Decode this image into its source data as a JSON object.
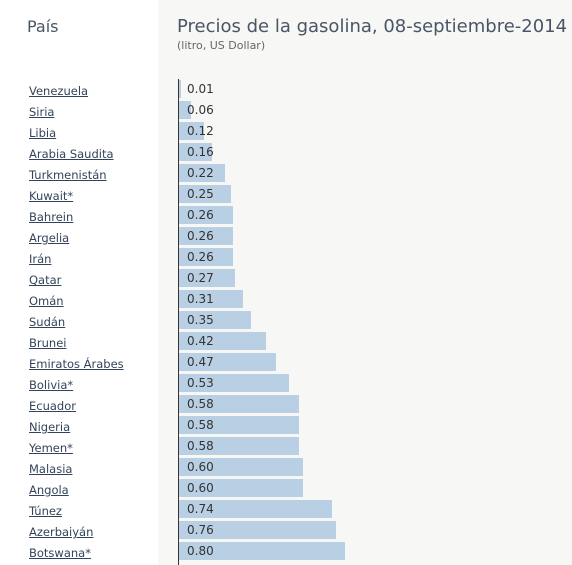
{
  "header": {
    "country_column": "País",
    "title": "Precios de la gasolina, 08-septiembre-2014",
    "subtitle": "(litro, US Dollar)"
  },
  "chart_data": {
    "type": "bar",
    "orientation": "horizontal",
    "title": "Precios de la gasolina, 08-septiembre-2014",
    "subtitle": "(litro, US Dollar)",
    "categories": [
      "Venezuela",
      "Siria",
      "Libia",
      "Arabia Saudita",
      "Turkmenistán",
      "Kuwait*",
      "Bahrein",
      "Argelia",
      "Irán",
      "Qatar",
      "Omán",
      "Sudán",
      "Brunei",
      "Emiratos Árabes",
      "Bolivia*",
      "Ecuador",
      "Nigeria",
      "Yemen*",
      "Malasia",
      "Angola",
      "Túnez",
      "Azerbaiyán",
      "Botswana*"
    ],
    "values": [
      0.01,
      0.06,
      0.12,
      0.16,
      0.22,
      0.25,
      0.26,
      0.26,
      0.26,
      0.27,
      0.31,
      0.35,
      0.42,
      0.47,
      0.53,
      0.58,
      0.58,
      0.58,
      0.6,
      0.6,
      0.74,
      0.76,
      0.8
    ],
    "labels": [
      "0.01",
      "0.06",
      "0.12",
      "0.16",
      "0.22",
      "0.25",
      "0.26",
      "0.26",
      "0.26",
      "0.27",
      "0.31",
      "0.35",
      "0.42",
      "0.47",
      "0.53",
      "0.58",
      "0.58",
      "0.58",
      "0.60",
      "0.60",
      "0.74",
      "0.76",
      "0.80"
    ],
    "bar_color": "#b9cfe4"
  }
}
